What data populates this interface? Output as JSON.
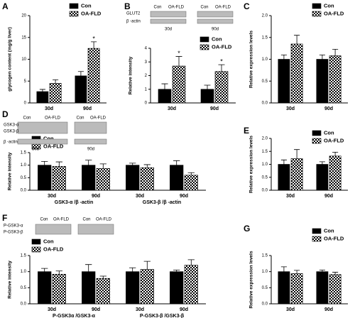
{
  "chart_data": [
    {
      "type": "bar",
      "panel": "A",
      "ylabel": "glycogen content (mg/g liver)",
      "categories": [
        "30d",
        "90d"
      ],
      "series": [
        {
          "name": "Con",
          "color": "#000000",
          "fill_style": "solid",
          "values": [
            2.6,
            6.2
          ],
          "errors": [
            0.5,
            1.0
          ]
        },
        {
          "name": "OA-FLD",
          "color": "#000000",
          "fill_style": "checkered",
          "values": [
            4.5,
            12.5
          ],
          "errors": [
            0.8,
            1.5
          ]
        }
      ],
      "annotations": [
        {
          "text": "*",
          "series": 1,
          "index": 1
        }
      ],
      "ylim": [
        0,
        20
      ],
      "yticks": [
        0,
        5,
        10,
        15,
        20
      ]
    },
    {
      "type": "bar",
      "panel": "B",
      "ylabel": "Relative intensity",
      "categories": [
        "30d",
        "90d"
      ],
      "blot_labels": [
        "GLUT2",
        "β -actin",
        "Con",
        "OA-FLD",
        "Con",
        "OA-FLD",
        "30d",
        "90d"
      ],
      "series": [
        {
          "name": "Con",
          "color": "#000000",
          "fill_style": "solid",
          "values": [
            1.0,
            1.0
          ],
          "errors": [
            0.4,
            0.3
          ]
        },
        {
          "name": "OA-FLD",
          "color": "#000000",
          "fill_style": "checkered",
          "values": [
            2.7,
            2.3
          ],
          "errors": [
            0.7,
            0.5
          ]
        }
      ],
      "annotations": [
        {
          "text": "*",
          "series": 1,
          "index": 0
        },
        {
          "text": "*",
          "series": 1,
          "index": 1
        }
      ],
      "ylim": [
        0,
        4
      ],
      "yticks": [
        0,
        1,
        2,
        3,
        4
      ]
    },
    {
      "type": "bar",
      "panel": "C",
      "ylabel": "Relative expression levels",
      "categories": [
        "30d",
        "90d"
      ],
      "series": [
        {
          "name": "Con",
          "color": "#000000",
          "fill_style": "solid",
          "values": [
            1.0,
            1.0
          ],
          "errors": [
            0.1,
            0.1
          ]
        },
        {
          "name": "OA-FLD",
          "color": "#000000",
          "fill_style": "checkered",
          "values": [
            1.35,
            1.08
          ],
          "errors": [
            0.2,
            0.15
          ]
        }
      ],
      "ylim": [
        0,
        2
      ],
      "yticks": [
        {
          "value": 0,
          "label": "0.0"
        },
        {
          "value": 0.5,
          "label": "0.5"
        },
        {
          "value": 1,
          "label": "1.0"
        },
        {
          "value": 1.5,
          "label": "1.5"
        },
        {
          "value": 2,
          "label": "2.0"
        }
      ]
    },
    {
      "type": "bar",
      "panel": "D",
      "ylabel": "Relative intensity",
      "categories": [
        "30d",
        "90d",
        "30d",
        "90d"
      ],
      "group_labels": [
        "GSK3-α /β -actin",
        "GSK3-β /β -actin"
      ],
      "blot_labels": [
        "Con",
        "OA-FLD",
        "Con",
        "OA-FLD",
        "GSK3-α",
        "GSK3-β",
        "β -actin",
        "30d",
        "90d"
      ],
      "series": [
        {
          "name": "Con",
          "color": "#000000",
          "fill_style": "solid",
          "values": [
            1.0,
            1.0,
            1.0,
            1.0
          ],
          "errors": [
            0.15,
            0.2,
            0.08,
            0.18
          ]
        },
        {
          "name": "OA-FLD",
          "color": "#000000",
          "fill_style": "checkered",
          "values": [
            0.95,
            0.87,
            0.9,
            0.6
          ],
          "errors": [
            0.18,
            0.18,
            0.12,
            0.1
          ]
        }
      ],
      "ylim": [
        0,
        1.5
      ],
      "yticks": [
        {
          "value": 0,
          "label": "0.0"
        },
        {
          "value": 0.5,
          "label": "0.5"
        },
        {
          "value": 1,
          "label": "1.0"
        },
        {
          "value": 1.5,
          "label": "1.5"
        }
      ]
    },
    {
      "type": "bar",
      "panel": "E",
      "ylabel": "Relative expression levels",
      "categories": [
        "30d",
        "90d"
      ],
      "series": [
        {
          "name": "Con",
          "color": "#000000",
          "fill_style": "solid",
          "values": [
            1.0,
            1.0
          ],
          "errors": [
            0.17,
            0.1
          ]
        },
        {
          "name": "OA-FLD",
          "color": "#000000",
          "fill_style": "checkered",
          "values": [
            1.22,
            1.32
          ],
          "errors": [
            0.35,
            0.15
          ]
        }
      ],
      "ylim": [
        0,
        2
      ],
      "yticks": [
        {
          "value": 0,
          "label": "0.0"
        },
        {
          "value": 0.5,
          "label": "0.5"
        },
        {
          "value": 1,
          "label": "1.0"
        },
        {
          "value": 1.5,
          "label": "1.5"
        },
        {
          "value": 2,
          "label": "2.0"
        }
      ]
    },
    {
      "type": "bar",
      "panel": "F",
      "ylabel": "Relative intensity",
      "categories": [
        "30d",
        "90d",
        "30d",
        "90d"
      ],
      "group_labels": [
        "P-GSK3α /GSK3-α",
        "P-GSK3-β /GSK3-β"
      ],
      "blot_labels": [
        "Con",
        "OA-FLD",
        "Con",
        "OA-FLD",
        "P-GSK3-α",
        "P-GSK3-β"
      ],
      "series": [
        {
          "name": "Con",
          "color": "#000000",
          "fill_style": "solid",
          "values": [
            1.0,
            1.0,
            1.0,
            1.0
          ],
          "errors": [
            0.1,
            0.22,
            0.12,
            0.05
          ]
        },
        {
          "name": "OA-FLD",
          "color": "#000000",
          "fill_style": "checkered",
          "values": [
            0.92,
            0.79,
            1.07,
            1.2
          ],
          "errors": [
            0.1,
            0.07,
            0.25,
            0.17
          ]
        }
      ],
      "ylim": [
        0,
        1.5
      ],
      "yticks": [
        {
          "value": 0,
          "label": "0.0"
        },
        {
          "value": 0.5,
          "label": "0.5"
        },
        {
          "value": 1,
          "label": "1.0"
        },
        {
          "value": 1.5,
          "label": "1.5"
        }
      ]
    },
    {
      "type": "bar",
      "panel": "G",
      "ylabel": "Relative expression levels",
      "categories": [
        "30d",
        "90d"
      ],
      "series": [
        {
          "name": "Con",
          "color": "#000000",
          "fill_style": "solid",
          "values": [
            1.0,
            1.0
          ],
          "errors": [
            0.15,
            0.05
          ]
        },
        {
          "name": "OA-FLD",
          "color": "#000000",
          "fill_style": "checkered",
          "values": [
            0.94,
            0.91
          ],
          "errors": [
            0.1,
            0.07
          ]
        }
      ],
      "ylim": [
        0,
        1.5
      ],
      "yticks": [
        {
          "value": 0,
          "label": "0.0"
        },
        {
          "value": 0.5,
          "label": "0.5"
        },
        {
          "value": 1,
          "label": "1.0"
        },
        {
          "value": 1.5,
          "label": "1.5"
        }
      ]
    }
  ]
}
